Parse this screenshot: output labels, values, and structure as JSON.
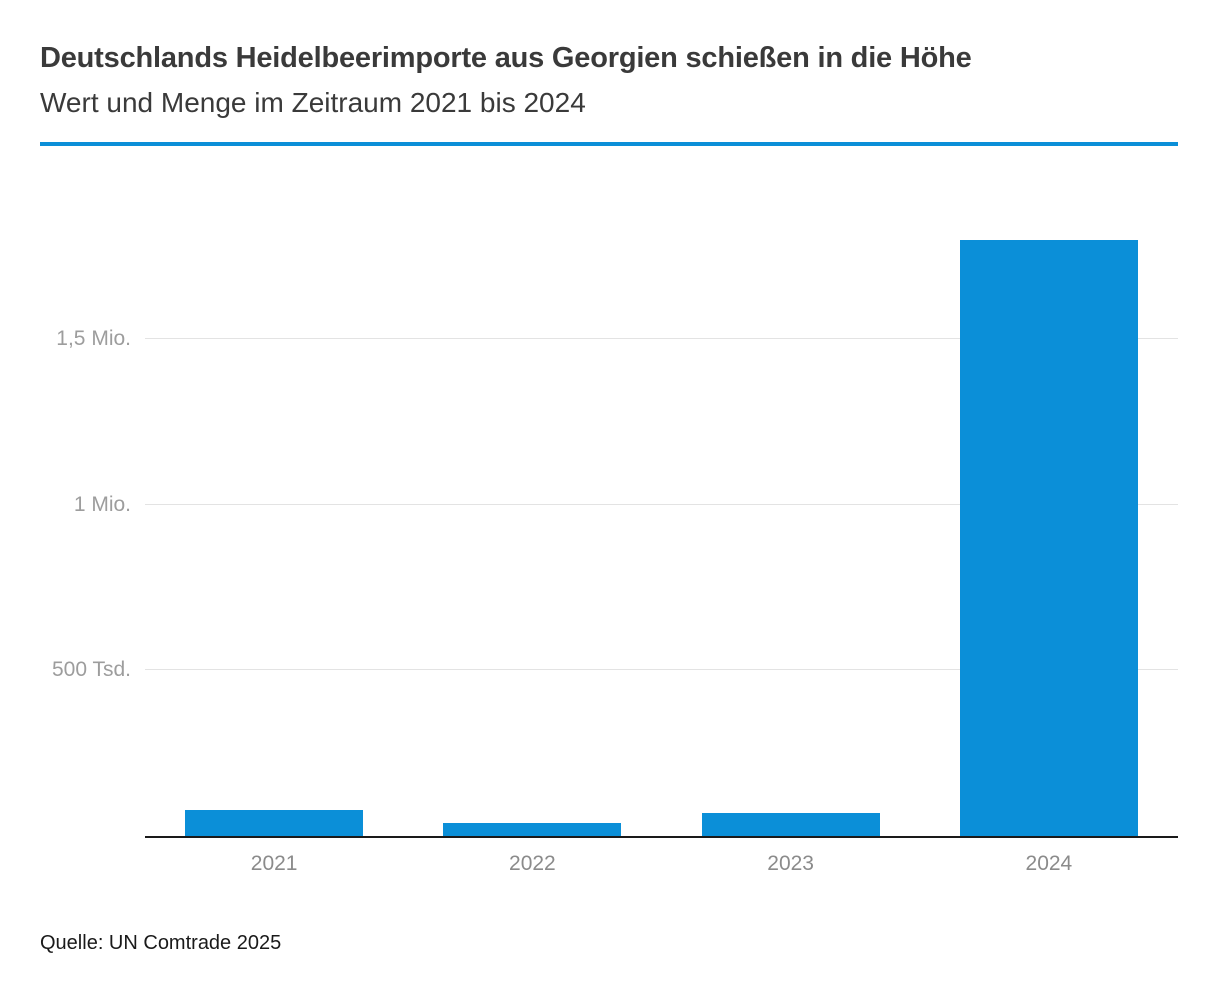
{
  "header": {
    "title": "Deutschlands Heidelbeerimporte aus Georgien schießen in die Höhe",
    "subtitle": "Wert und Menge im Zeitraum 2021 bis 2024"
  },
  "footer": {
    "source": "Quelle: UN Comtrade 2025"
  },
  "colors": {
    "accent": "#0b8fd8",
    "bar": "#0b8fd8",
    "grid": "#e3e3e3",
    "axis": "#1a1a1a",
    "y_tick_label": "#9d9d9d",
    "x_tick_label": "#8b8b8b",
    "title_text": "#3a3a3a"
  },
  "chart_data": {
    "type": "bar",
    "title": "Deutschlands Heidelbeerimporte aus Georgien schießen in die Höhe",
    "subtitle": "Wert und Menge im Zeitraum 2021 bis 2024",
    "source": "Quelle: UN Comtrade 2025",
    "categories": [
      "2021",
      "2022",
      "2023",
      "2024"
    ],
    "values": [
      80000,
      40000,
      70000,
      1800000
    ],
    "xlabel": "",
    "ylabel": "",
    "ylim": [
      0,
      1950000
    ],
    "yticks": [
      {
        "value": 500000,
        "label": "500 Tsd."
      },
      {
        "value": 1000000,
        "label": "1 Mio."
      },
      {
        "value": 1500000,
        "label": "1,5 Mio."
      }
    ],
    "grid": true,
    "legend": false
  }
}
